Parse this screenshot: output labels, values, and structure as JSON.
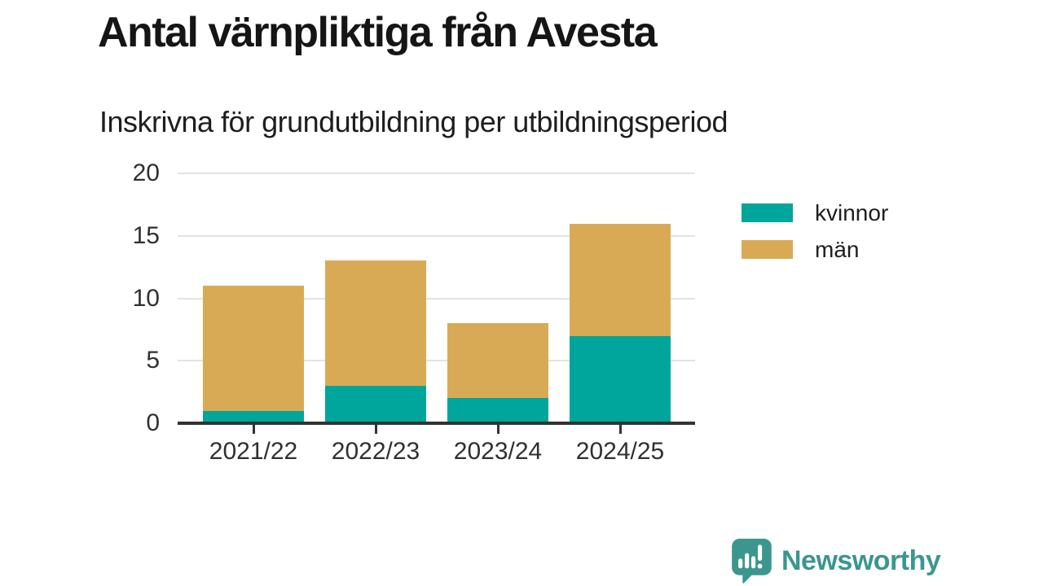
{
  "title": "Antal värnpliktiga från Avesta",
  "subtitle": "Inskrivna för grundutbildning per utbildningsperiod",
  "colors": {
    "kvinnor": "#00a59b",
    "man": "#d9aa55",
    "gridline": "#e3e3e3",
    "axis": "#333333",
    "tick_label": "#303030"
  },
  "chart_data": {
    "type": "bar",
    "stacked": true,
    "title": "Antal värnpliktiga från Avesta",
    "subtitle": "Inskrivna för grundutbildning per utbildningsperiod",
    "categories": [
      "2021/22",
      "2022/23",
      "2023/24",
      "2024/25"
    ],
    "series": [
      {
        "name": "kvinnor",
        "color": "#00a59b",
        "values": [
          1,
          3,
          2,
          7
        ]
      },
      {
        "name": "män",
        "color": "#d9aa55",
        "values": [
          10,
          10,
          6,
          9
        ]
      }
    ],
    "totals": [
      11,
      13,
      8,
      16
    ],
    "xlabel": "",
    "ylabel": "",
    "ylim": [
      0,
      20
    ],
    "yticks": [
      0,
      5,
      10,
      15,
      20
    ],
    "grid": true,
    "legend_position": "right"
  },
  "legend": {
    "items": [
      {
        "label": "kvinnor",
        "color": "#00a59b"
      },
      {
        "label": "män",
        "color": "#d9aa55"
      }
    ]
  },
  "brand": {
    "name": "Newsworthy",
    "color": "#3b968f"
  }
}
